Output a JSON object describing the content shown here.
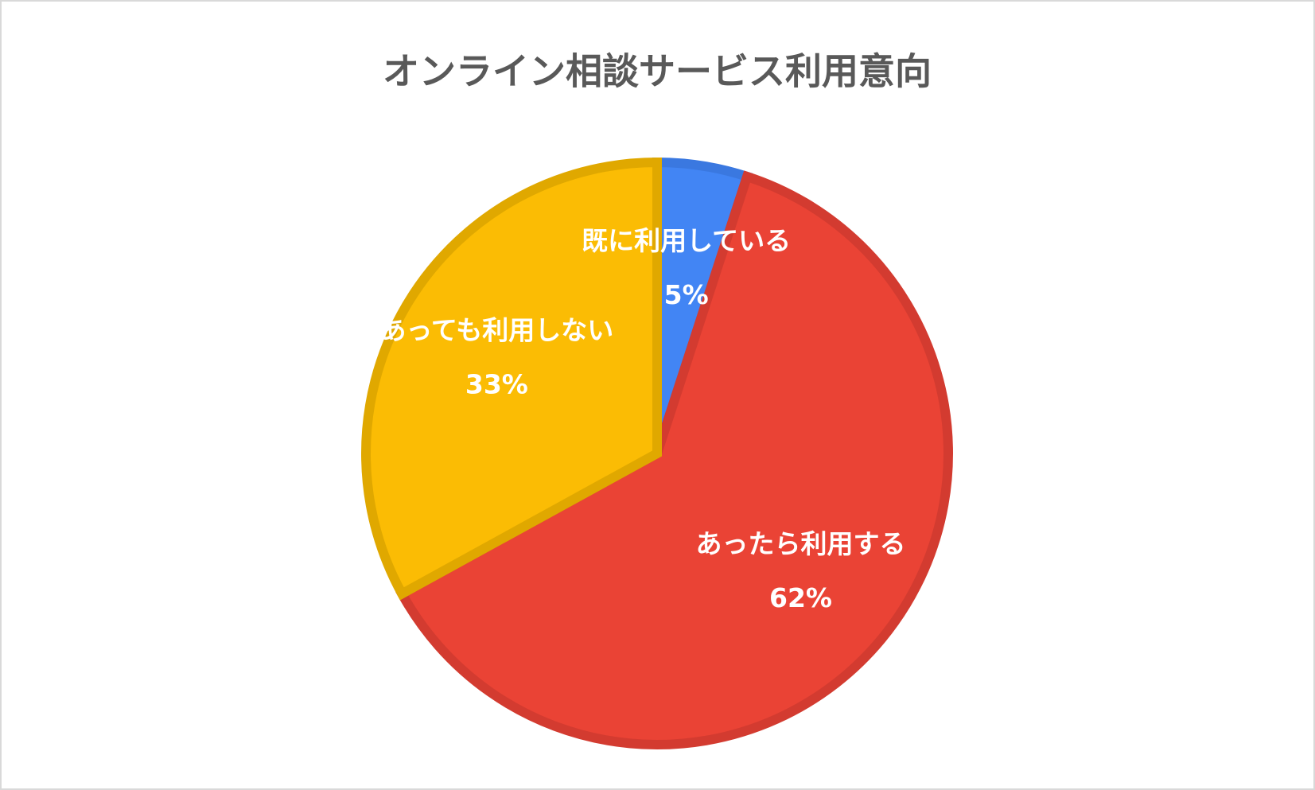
{
  "chart_data": {
    "type": "pie",
    "title": "オンライン相談サービス利用意向",
    "categories": [
      "既に利用している",
      "あったら利用する",
      "あっても利用しない"
    ],
    "values": [
      5,
      62,
      33
    ],
    "value_labels": [
      "5%",
      "62%",
      "33%"
    ],
    "colors": [
      "#4285f4",
      "#ea4335",
      "#fbbc04"
    ],
    "edge_colors": [
      "#3a78e0",
      "#d33b30",
      "#e0a800"
    ]
  }
}
